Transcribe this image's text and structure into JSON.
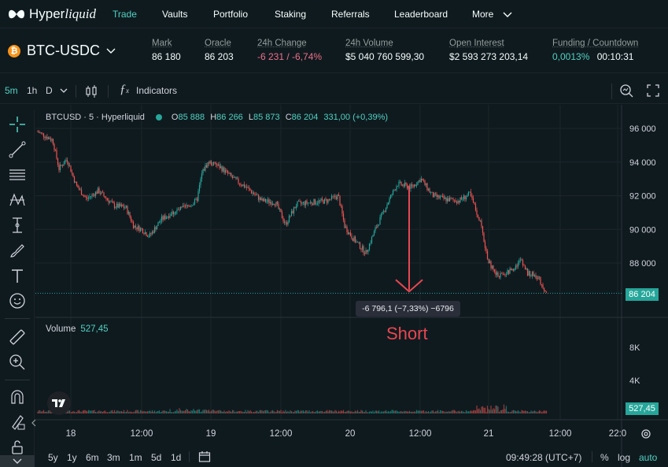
{
  "nav": {
    "logo_text": "Hyperliquid",
    "items": [
      "Trade",
      "Vaults",
      "Portfolio",
      "Staking",
      "Referrals",
      "Leaderboard",
      "More"
    ]
  },
  "ticker": {
    "pair": "BTC-USDC",
    "coin_symbol": "₿",
    "stats": [
      {
        "label": "Mark",
        "value": "86 180"
      },
      {
        "label": "Oracle",
        "value": "86 203"
      },
      {
        "label": "24h Change",
        "value": "-6 231 / -6,74%"
      },
      {
        "label": "24h Volume",
        "value": "$5 040 760 599,30"
      },
      {
        "label": "Open Interest",
        "value": "$2 593 273 203,14"
      },
      {
        "label": "Funding / Countdown",
        "value": "0,0013%",
        "value2": "00:10:31"
      }
    ]
  },
  "toolbar": {
    "intervals": [
      "5m",
      "1h",
      "D"
    ],
    "indicators_label": "Indicators"
  },
  "chart": {
    "symbol_label": "BTCUSD · 5 · Hyperliquid",
    "ohlc": {
      "o_label": "O",
      "o": "85 888",
      "h_label": "H",
      "h": "86 266",
      "l_label": "L",
      "l": "85 873",
      "c_label": "C",
      "c": "86 204",
      "change": "331,00 (+0,39%)"
    },
    "current_price": "86 204",
    "volume_label": "Volume",
    "volume_value": "527,45",
    "measure_text": "-6 796,1 (−7,33%) −6796",
    "annotation_text": "Short",
    "price_axis": [
      "96 000",
      "94 000",
      "92 000",
      "90 000",
      "88 000"
    ],
    "volume_axis": [
      "8K",
      "4K"
    ],
    "time_axis": [
      "18",
      "12:00",
      "19",
      "12:00",
      "20",
      "12:00",
      "21",
      "12:00",
      "22:0"
    ]
  },
  "bottom": {
    "ranges": [
      "5y",
      "1y",
      "6m",
      "3m",
      "1m",
      "5d",
      "1d"
    ],
    "clock": "09:49:28 (UTC+7)",
    "options": [
      "%",
      "log",
      "auto"
    ]
  },
  "colors": {
    "up": "#26a69a",
    "down": "#ef5350",
    "accent": "#50d2c1",
    "annotation": "#e84750"
  }
}
